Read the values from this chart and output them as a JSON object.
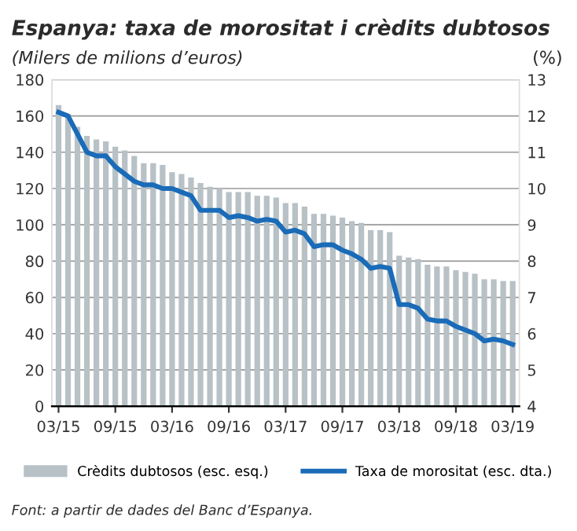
{
  "chart_data": {
    "type": "bar",
    "title": "Espanya: taxa de morositat i crèdits dubtosos",
    "subtitle": "(Milers de milions d’euros)",
    "y2label": "(%)",
    "categories": [
      "03/15",
      null,
      null,
      null,
      null,
      null,
      "09/15",
      null,
      null,
      null,
      null,
      null,
      "03/16",
      null,
      null,
      null,
      null,
      null,
      "09/16",
      null,
      null,
      null,
      null,
      null,
      "03/17",
      null,
      null,
      null,
      null,
      null,
      "09/17",
      null,
      null,
      null,
      null,
      null,
      "03/18",
      null,
      null,
      null,
      null,
      null,
      "09/18",
      null,
      null,
      null,
      null,
      null,
      "03/19"
    ],
    "series": [
      {
        "name": "Crèdits dubtosos (esc. esq.)",
        "color": "#b7c1c6",
        "values": [
          166,
          161,
          154,
          149,
          147,
          146,
          143,
          141,
          138,
          134,
          134,
          133,
          129,
          128,
          126,
          123,
          121,
          120,
          118,
          118,
          118,
          116,
          116,
          115,
          112,
          112,
          110,
          106,
          106,
          105,
          104,
          102,
          101,
          97,
          97,
          96,
          83,
          82,
          81,
          78,
          77,
          77,
          75,
          74,
          73,
          70,
          70,
          69,
          69
        ]
      },
      {
        "name": "Taxa de morositat (esc. dta.)",
        "type": "line",
        "axis": "y2",
        "color": "#1a6bb8",
        "values": [
          12.1,
          12.0,
          11.5,
          11.0,
          10.9,
          10.9,
          10.6,
          10.4,
          10.2,
          10.1,
          10.1,
          10.0,
          10.0,
          9.9,
          9.8,
          9.4,
          9.4,
          9.4,
          9.2,
          9.25,
          9.2,
          9.1,
          9.15,
          9.1,
          8.8,
          8.85,
          8.75,
          8.4,
          8.45,
          8.45,
          8.3,
          8.2,
          8.05,
          7.8,
          7.85,
          7.8,
          6.8,
          6.8,
          6.7,
          6.4,
          6.35,
          6.35,
          6.2,
          6.1,
          6.0,
          5.8,
          5.85,
          5.8,
          5.7
        ]
      }
    ],
    "ylim": [
      0,
      180
    ],
    "yticks": [
      0,
      20,
      40,
      60,
      80,
      100,
      120,
      140,
      160,
      180
    ],
    "y2lim": [
      4,
      13
    ],
    "y2ticks": [
      4,
      5,
      6,
      7,
      8,
      9,
      10,
      11,
      12,
      13
    ],
    "grid": "y",
    "legend": "bottom",
    "marker": "none",
    "line_style": "solid",
    "annotations": [
      "Font: a partir de dades del Banc d’Espanya."
    ]
  }
}
